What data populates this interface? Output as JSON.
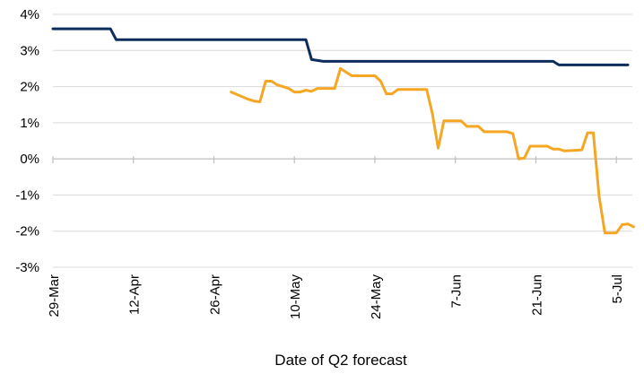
{
  "chart_data": {
    "type": "line",
    "title": "",
    "xlabel": "Date of Q2 forecast",
    "ylabel": "",
    "x_tick_labels": [
      "29-Mar",
      "12-Apr",
      "26-Apr",
      "10-May",
      "24-May",
      "7-Jun",
      "21-Jun",
      "5-Jul"
    ],
    "x_tick_dates": [
      "2021-03-29",
      "2021-04-12",
      "2021-04-26",
      "2021-05-10",
      "2021-05-24",
      "2021-06-07",
      "2021-06-21",
      "2021-07-05"
    ],
    "y_tick_labels": [
      "4%",
      "3%",
      "2%",
      "1%",
      "0%",
      "-1%",
      "-2%",
      "-3%"
    ],
    "y_tick_values": [
      4,
      3,
      2,
      1,
      0,
      -1,
      -2,
      -3
    ],
    "xlim": [
      "2021-03-29",
      "2021-07-07"
    ],
    "ylim": [
      -3,
      4
    ],
    "grid": "horizontal",
    "legend": "none",
    "series": [
      {
        "color": "#0d2d5c",
        "points": [
          [
            "2021-03-29",
            3.6
          ],
          [
            "2021-04-08",
            3.6
          ],
          [
            "2021-04-09",
            3.3
          ],
          [
            "2021-05-12",
            3.3
          ],
          [
            "2021-05-13",
            2.75
          ],
          [
            "2021-05-15",
            2.7
          ],
          [
            "2021-06-24",
            2.7
          ],
          [
            "2021-06-25",
            2.6
          ],
          [
            "2021-07-07",
            2.6
          ]
        ]
      },
      {
        "color": "#f5a623",
        "points": [
          [
            "2021-04-29",
            1.85
          ],
          [
            "2021-05-02",
            1.65
          ],
          [
            "2021-05-03",
            1.6
          ],
          [
            "2021-05-04",
            1.58
          ],
          [
            "2021-05-05",
            2.15
          ],
          [
            "2021-05-06",
            2.15
          ],
          [
            "2021-05-07",
            2.05
          ],
          [
            "2021-05-09",
            1.95
          ],
          [
            "2021-05-10",
            1.85
          ],
          [
            "2021-05-11",
            1.85
          ],
          [
            "2021-05-12",
            1.9
          ],
          [
            "2021-05-13",
            1.87
          ],
          [
            "2021-05-14",
            1.95
          ],
          [
            "2021-05-16",
            1.95
          ],
          [
            "2021-05-17",
            1.95
          ],
          [
            "2021-05-18",
            2.5
          ],
          [
            "2021-05-19",
            2.4
          ],
          [
            "2021-05-20",
            2.3
          ],
          [
            "2021-05-24",
            2.3
          ],
          [
            "2021-05-25",
            2.15
          ],
          [
            "2021-05-26",
            1.8
          ],
          [
            "2021-05-27",
            1.8
          ],
          [
            "2021-05-28",
            1.92
          ],
          [
            "2021-06-02",
            1.92
          ],
          [
            "2021-06-03",
            1.25
          ],
          [
            "2021-06-04",
            0.3
          ],
          [
            "2021-06-05",
            1.05
          ],
          [
            "2021-06-08",
            1.05
          ],
          [
            "2021-06-09",
            0.9
          ],
          [
            "2021-06-11",
            0.9
          ],
          [
            "2021-06-12",
            0.75
          ],
          [
            "2021-06-16",
            0.75
          ],
          [
            "2021-06-17",
            0.7
          ],
          [
            "2021-06-18",
            0.0
          ],
          [
            "2021-06-19",
            0.02
          ],
          [
            "2021-06-20",
            0.35
          ],
          [
            "2021-06-23",
            0.35
          ],
          [
            "2021-06-24",
            0.27
          ],
          [
            "2021-06-25",
            0.27
          ],
          [
            "2021-06-26",
            0.22
          ],
          [
            "2021-06-29",
            0.25
          ],
          [
            "2021-06-30",
            0.72
          ],
          [
            "2021-07-01",
            0.72
          ],
          [
            "2021-07-02",
            -1.05
          ],
          [
            "2021-07-03",
            -2.05
          ],
          [
            "2021-07-04",
            -2.05
          ],
          [
            "2021-07-05",
            -2.05
          ],
          [
            "2021-07-06",
            -1.82
          ],
          [
            "2021-07-07",
            -1.8
          ],
          [
            "2021-07-08",
            -1.88
          ]
        ]
      }
    ]
  }
}
